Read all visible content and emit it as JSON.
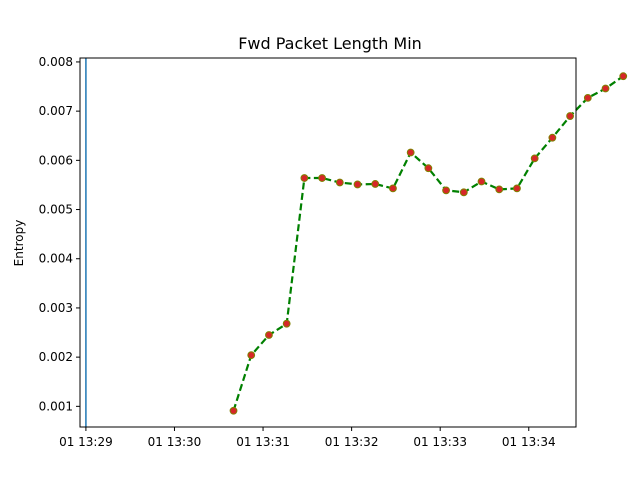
{
  "chart_data": {
    "type": "line",
    "title": "Fwd Packet Length Min",
    "xlabel": "",
    "ylabel": "Entropy",
    "xlim": [
      "01 13:28:56",
      "01 13:34:32"
    ],
    "ylim": [
      0.00058,
      0.00808
    ],
    "x_ticks": [
      {
        "t": "01 13:29:00",
        "label": "01 13:29"
      },
      {
        "t": "01 13:30:00",
        "label": "01 13:30"
      },
      {
        "t": "01 13:31:00",
        "label": "01 13:31"
      },
      {
        "t": "01 13:32:00",
        "label": "01 13:32"
      },
      {
        "t": "01 13:33:00",
        "label": "01 13:33"
      },
      {
        "t": "01 13:34:00",
        "label": "01 13:34"
      }
    ],
    "y_ticks": [
      {
        "v": 0.001,
        "label": "0.001"
      },
      {
        "v": 0.002,
        "label": "0.002"
      },
      {
        "v": 0.003,
        "label": "0.003"
      },
      {
        "v": 0.004,
        "label": "0.004"
      },
      {
        "v": 0.005,
        "label": "0.005"
      },
      {
        "v": 0.006,
        "label": "0.006"
      },
      {
        "v": 0.007,
        "label": "0.007"
      },
      {
        "v": 0.008,
        "label": "0.008"
      }
    ],
    "vertical_line": {
      "x": "01 13:29:00",
      "color": "#1f77b4"
    },
    "grid": false,
    "series": [
      {
        "line_color": "#008000",
        "line_style": "dashed",
        "marker_face": "#d62728",
        "marker_edge": "#808000",
        "points": [
          {
            "x": "01 13:30:40",
            "y": 0.00091
          },
          {
            "x": "01 13:30:52",
            "y": 0.00204
          },
          {
            "x": "01 13:31:04",
            "y": 0.00245
          },
          {
            "x": "01 13:31:16",
            "y": 0.00268
          },
          {
            "x": "01 13:31:28",
            "y": 0.00564
          },
          {
            "x": "01 13:31:40",
            "y": 0.00564
          },
          {
            "x": "01 13:31:52",
            "y": 0.00555
          },
          {
            "x": "01 13:32:04",
            "y": 0.00551
          },
          {
            "x": "01 13:32:16",
            "y": 0.00552
          },
          {
            "x": "01 13:32:28",
            "y": 0.00543
          },
          {
            "x": "01 13:32:40",
            "y": 0.00616
          },
          {
            "x": "01 13:32:52",
            "y": 0.00584
          },
          {
            "x": "01 13:33:04",
            "y": 0.00539
          },
          {
            "x": "01 13:33:16",
            "y": 0.00535
          },
          {
            "x": "01 13:33:28",
            "y": 0.00557
          },
          {
            "x": "01 13:33:40",
            "y": 0.00541
          },
          {
            "x": "01 13:33:52",
            "y": 0.00543
          },
          {
            "x": "01 13:34:04",
            "y": 0.00604
          },
          {
            "x": "01 13:34:16",
            "y": 0.00646
          },
          {
            "x": "01 13:34:28",
            "y": 0.0069
          },
          {
            "x": "01 13:34:40",
            "y": 0.00727
          },
          {
            "x": "01 13:34:52",
            "y": 0.00746
          },
          {
            "x": "01 13:35:04",
            "y": 0.00771
          }
        ]
      }
    ]
  }
}
